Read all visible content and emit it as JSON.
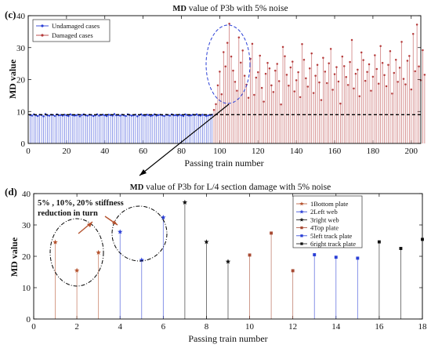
{
  "chart_data": [
    {
      "type": "stem",
      "panel_label": "(c)",
      "title_bold": "MD",
      "title_rest": " value of  P3b with 5% noise",
      "xlabel": "Passing train number",
      "ylabel": "MD value",
      "xlim": [
        0,
        205
      ],
      "ylim": [
        0,
        40
      ],
      "xticks": [
        0,
        20,
        40,
        60,
        80,
        100,
        120,
        140,
        160,
        180,
        200
      ],
      "yticks": [
        0,
        10,
        20,
        30,
        40
      ],
      "threshold": 9.0,
      "legend_position": "top-left",
      "series": [
        {
          "name": "Undamaged cases",
          "color": "#2a3fd6",
          "marker": "dot",
          "x_start": 1,
          "values": [
            8.9,
            8.7,
            9.1,
            8.8,
            8.6,
            9.0,
            8.9,
            8.5,
            9.2,
            8.8,
            8.7,
            9.0,
            8.9,
            8.6,
            9.1,
            8.8,
            8.9,
            8.7,
            9.0,
            8.8,
            8.6,
            9.1,
            8.9,
            8.7,
            8.8,
            9.0,
            8.5,
            8.9,
            9.1,
            8.8,
            8.7,
            9.0,
            8.9,
            8.6,
            8.8,
            9.1,
            8.7,
            8.9,
            9.0,
            8.8,
            8.6,
            9.0,
            8.9,
            8.7,
            9.2,
            8.8,
            8.9,
            8.7,
            9.0,
            8.8,
            8.6,
            9.1,
            8.9,
            8.7,
            8.8,
            9.0,
            8.5,
            8.9,
            9.1,
            8.8,
            8.7,
            9.0,
            8.9,
            8.6,
            8.8,
            9.1,
            8.7,
            8.9,
            9.0,
            8.8,
            8.6,
            9.0,
            8.9,
            8.7,
            9.1,
            8.8,
            8.9,
            8.7,
            9.0,
            8.8,
            8.6,
            9.1,
            8.9,
            8.7,
            8.8,
            9.0,
            8.9,
            9.1,
            8.8,
            8.7,
            9.0,
            8.9,
            8.6,
            8.8,
            8.9,
            9.0
          ]
        },
        {
          "name": "Damaged cases",
          "color": "#b53b3b",
          "marker": "dot",
          "x_start": 97,
          "values": [
            10.5,
            12.3,
            18.2,
            22.5,
            15.4,
            28.6,
            24.1,
            31.5,
            37.5,
            27.2,
            22.8,
            19.3,
            16.5,
            33.2,
            25.3,
            29.1,
            21.2,
            18.4,
            14.3,
            26.5,
            31.2,
            15.2,
            20.6,
            22.3,
            27.5,
            17.4,
            13.1,
            21.8,
            25.2,
            23.5,
            18.2,
            16.1,
            22.8,
            24.9,
            19.5,
            12.2,
            30.2,
            27.3,
            21.5,
            18.1,
            23.8,
            25.6,
            16.3,
            19.8,
            22.3,
            14.5,
            31.1,
            26.2,
            20.4,
            17.8,
            23.5,
            28.2,
            15.8,
            21.2,
            24.6,
            19.1,
            13.6,
            26.8,
            22.5,
            18.9,
            25.1,
            29.6,
            16.8,
            21.7,
            23.9,
            19.4,
            12.5,
            27.2,
            24.2,
            20.8,
            18.3,
            25.5,
            32.4,
            17.2,
            21.8,
            23.1,
            14.8,
            28.5,
            26.1,
            19.6,
            22.4,
            24.8,
            16.5,
            20.9,
            27.6,
            23.3,
            18.7,
            30.5,
            25.2,
            21.4,
            17.9,
            24.6,
            28.9,
            15.6,
            22.1,
            26.2,
            19.3,
            23.7,
            31.8,
            20.2,
            18.5,
            25.9,
            27.4,
            16.9,
            34.3,
            22.6,
            37.2,
            24.1,
            19.8,
            29.2,
            21.5
          ]
        }
      ]
    },
    {
      "type": "stem",
      "panel_label": "(d)",
      "title_bold": "MD",
      "title_rest": " value of  P3b for  L/4 section damage with 5% noise",
      "xlabel": "Passing train number",
      "ylabel": "MD value",
      "xlim": [
        0,
        18
      ],
      "ylim": [
        0,
        40
      ],
      "xticks": [
        0,
        2,
        4,
        6,
        8,
        10,
        12,
        14,
        16,
        18
      ],
      "yticks": [
        0,
        10,
        20,
        30,
        40
      ],
      "legend_position": "top-right",
      "annotation": [
        "5% , 10%, 20% stiffness",
        "reduction in turn"
      ],
      "series": [
        {
          "name": "1Bottom plate",
          "color": "#b5532f",
          "marker": "star",
          "x": [
            1,
            2,
            3
          ],
          "values": [
            24.5,
            15.5,
            21.2
          ]
        },
        {
          "name": "2Left web",
          "color": "#2a3fd6",
          "marker": "star",
          "x": [
            4,
            5,
            6
          ],
          "values": [
            27.8,
            18.8,
            32.4
          ]
        },
        {
          "name": "3right web",
          "color": "#111111",
          "marker": "star",
          "x": [
            7,
            8,
            9
          ],
          "values": [
            37.2,
            24.6,
            18.3
          ]
        },
        {
          "name": "4Top plate",
          "color": "#a84a33",
          "marker": "square",
          "x": [
            10,
            11,
            12
          ],
          "values": [
            20.4,
            27.4,
            15.4
          ]
        },
        {
          "name": "5left track plate",
          "color": "#2a3fd6",
          "marker": "square",
          "x": [
            13,
            14,
            15
          ],
          "values": [
            20.5,
            19.7,
            19.4
          ]
        },
        {
          "name": "6right track plate",
          "color": "#111111",
          "marker": "square",
          "x": [
            16,
            17,
            18
          ],
          "values": [
            24.6,
            22.5,
            25.4
          ]
        }
      ]
    }
  ]
}
